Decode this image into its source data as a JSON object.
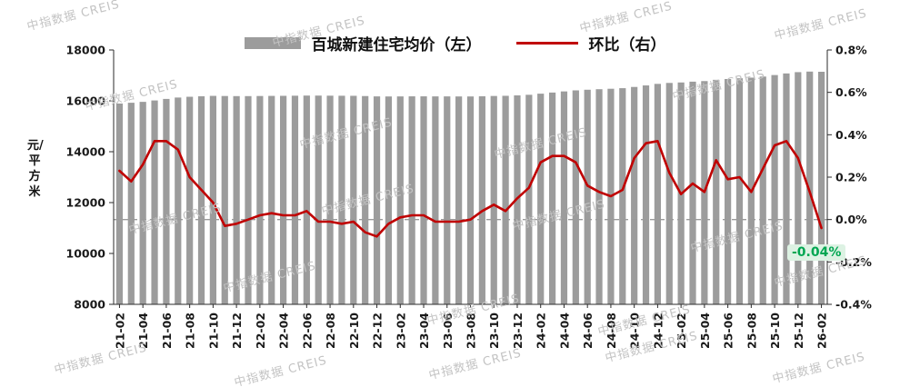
{
  "watermark": {
    "text": "中指数据 CREIS"
  },
  "legend": {
    "bar_label": "百城新建住宅均价（左）",
    "line_label": "环比（右）"
  },
  "y_axis_title": "元/平方米",
  "annotation": {
    "text": "-0.04%"
  },
  "chart_data": {
    "type": "bar+line combo",
    "title": "",
    "grid": false,
    "legend_position": "top",
    "x_tick_every": 2,
    "categories": [
      "21-02",
      "21-03",
      "21-04",
      "21-05",
      "21-06",
      "21-07",
      "21-08",
      "21-09",
      "21-10",
      "21-11",
      "21-12",
      "22-01",
      "22-02",
      "22-03",
      "22-04",
      "22-05",
      "22-06",
      "22-07",
      "22-08",
      "22-09",
      "22-10",
      "22-11",
      "22-12",
      "23-01",
      "23-02",
      "23-03",
      "23-04",
      "23-05",
      "23-06",
      "23-07",
      "23-08",
      "23-09",
      "23-10",
      "23-11",
      "23-12",
      "24-01",
      "24-02",
      "24-03",
      "24-04",
      "24-05",
      "24-06",
      "24-07",
      "24-08",
      "24-09",
      "24-10",
      "24-11",
      "24-12",
      "25-01",
      "25-02",
      "25-03",
      "25-04",
      "25-05",
      "25-06",
      "25-07",
      "25-08",
      "25-09",
      "25-10",
      "25-11",
      "25-12",
      "26-01",
      "26-02"
    ],
    "series": [
      {
        "name": "百城新建住宅均价（左）",
        "type": "bar",
        "axis": "left",
        "unit": "元/平方米",
        "color": "#9c9c9c",
        "values": [
          15895,
          15925,
          15960,
          16015,
          16075,
          16130,
          16160,
          16180,
          16195,
          16190,
          16186,
          16186,
          16190,
          16194,
          16197,
          16201,
          16207,
          16206,
          16203,
          16200,
          16198,
          16188,
          16175,
          16172,
          16174,
          16177,
          16177,
          16175,
          16175,
          16173,
          16173,
          16180,
          16191,
          16198,
          16214,
          16238,
          16282,
          16326,
          16370,
          16411,
          16436,
          16457,
          16475,
          16498,
          16546,
          16606,
          16667,
          16704,
          16722,
          16754,
          16776,
          16826,
          16858,
          16888,
          16913,
          16955,
          17014,
          17077,
          17128,
          17150,
          17143
        ]
      },
      {
        "name": "环比（右）",
        "type": "line",
        "axis": "right",
        "unit": "%",
        "color": "#c00000",
        "values": [
          0.23,
          0.18,
          0.26,
          0.37,
          0.37,
          0.33,
          0.2,
          0.14,
          0.08,
          -0.03,
          -0.02,
          0.0,
          0.02,
          0.03,
          0.02,
          0.02,
          0.04,
          -0.01,
          -0.01,
          -0.02,
          -0.01,
          -0.06,
          -0.08,
          -0.02,
          0.01,
          0.02,
          0.02,
          -0.01,
          -0.01,
          -0.01,
          0.0,
          0.04,
          0.07,
          0.04,
          0.1,
          0.15,
          0.27,
          0.3,
          0.3,
          0.27,
          0.16,
          0.13,
          0.11,
          0.14,
          0.29,
          0.36,
          0.37,
          0.22,
          0.12,
          0.17,
          0.13,
          0.28,
          0.19,
          0.2,
          0.13,
          0.24,
          0.35,
          0.37,
          0.29,
          0.13,
          -0.04
        ]
      }
    ],
    "left_axis": {
      "title": "元/平方米",
      "min": 8000,
      "max": 18000,
      "step": 2000,
      "tick_labels": [
        "8000",
        "10000",
        "12000",
        "14000",
        "16000",
        "18000"
      ]
    },
    "right_axis": {
      "min": -0.4,
      "max": 0.8,
      "step": 0.2,
      "tick_labels": [
        "-0.4%",
        "-0.2%",
        "0.0%",
        "0.2%",
        "0.4%",
        "0.6%",
        "0.8%"
      ]
    },
    "zero_line": {
      "value": 0,
      "style": "dashed",
      "color": "#9a9a9a"
    },
    "annotation": {
      "text": "-0.04%",
      "color": "#00a651",
      "x_category": "26-02"
    }
  }
}
